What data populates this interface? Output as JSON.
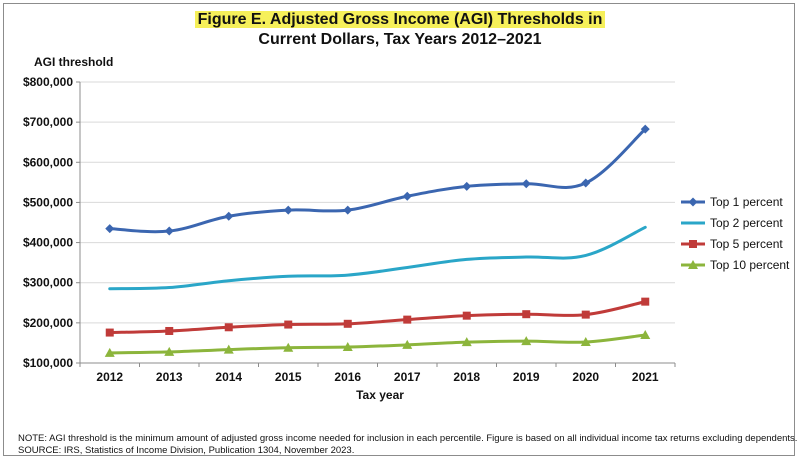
{
  "chart_data": {
    "type": "line",
    "title_line1": "Figure E. Adjusted Gross Income (AGI) Thresholds in",
    "title_line2": "Current Dollars, Tax Years 2012–2021",
    "ylabel": "AGI threshold",
    "xlabel": "Tax year",
    "categories": [
      "2012",
      "2013",
      "2014",
      "2015",
      "2016",
      "2017",
      "2018",
      "2019",
      "2020",
      "2021"
    ],
    "ylim": [
      100000,
      800000
    ],
    "yticks": [
      100000,
      200000,
      300000,
      400000,
      500000,
      600000,
      700000,
      800000
    ],
    "ytick_labels": [
      "$100,000",
      "$200,000",
      "$300,000",
      "$400,000",
      "$500,000",
      "$600,000",
      "$700,000",
      "$800,000"
    ],
    "grid": "horizontal",
    "legend_position": "right",
    "series": [
      {
        "name": "Top 1 percent",
        "color": "#3b66b0",
        "marker": "diamond",
        "values": [
          434682,
          428713,
          465626,
          480930,
          480804,
          515371,
          540009,
          546434,
          548336,
          682577
        ]
      },
      {
        "name": "Top 2 percent",
        "color": "#2aa6c8",
        "marker": "none",
        "values": [
          285000,
          288000,
          305000,
          316000,
          319000,
          338000,
          358000,
          364000,
          368000,
          438000
        ]
      },
      {
        "name": "Top 5 percent",
        "color": "#c03b39",
        "marker": "square",
        "values": [
          175817,
          179760,
          188996,
          195778,
          197651,
          208053,
          217913,
          221572,
          220521,
          252840
        ]
      },
      {
        "name": "Top 10 percent",
        "color": "#8cb53c",
        "marker": "triangle",
        "values": [
          125195,
          127695,
          133445,
          138031,
          139713,
          145135,
          151935,
          154589,
          152321,
          169800
        ]
      }
    ]
  },
  "note": {
    "line1": "NOTE: AGI threshold is the minimum amount of adjusted gross income needed for inclusion in each percentile. Figure is based on all individual income tax returns excluding dependents.",
    "line2": "SOURCE: IRS, Statistics of Income Division, Publication 1304, November 2023."
  }
}
